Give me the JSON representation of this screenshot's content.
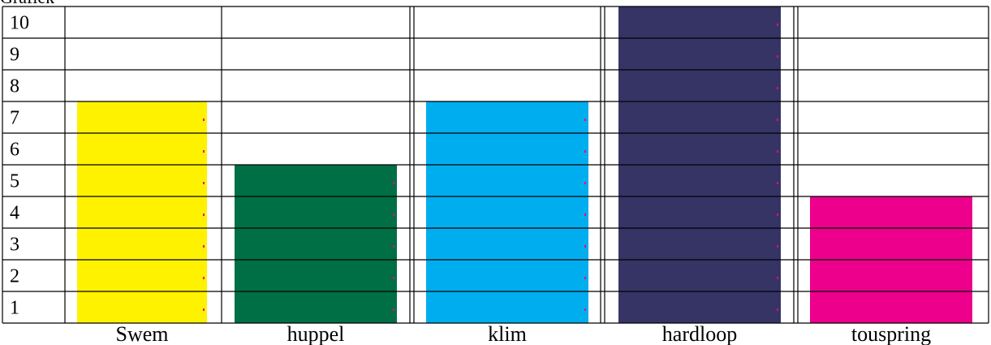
{
  "chart_data": {
    "type": "bar",
    "title": "Grafiek",
    "categories": [
      "Swem",
      "huppel",
      "klim",
      "hardloop",
      "touspring"
    ],
    "values": [
      7,
      5,
      7,
      10,
      4
    ],
    "ylim": [
      0,
      10
    ],
    "y_ticks": [
      "1",
      "2",
      "3",
      "4",
      "5",
      "6",
      "7",
      "8",
      "9",
      "10"
    ],
    "grid": true,
    "colors": [
      "#fff200",
      "#006f45",
      "#00aeef",
      "#363465",
      "#ec008c"
    ],
    "dot_color": "#ec008c"
  }
}
